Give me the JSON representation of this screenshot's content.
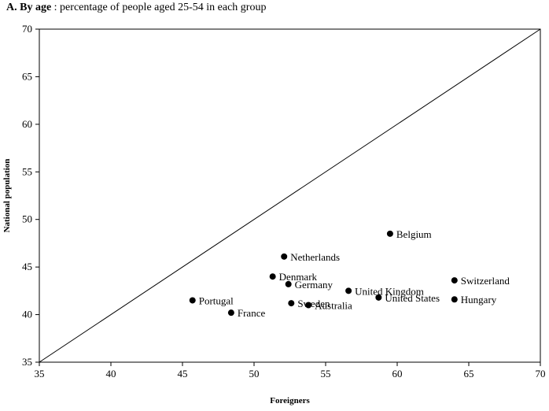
{
  "chart_data": {
    "type": "scatter",
    "title_bold": "A. By age",
    "title_rest": " : percentage of people aged 25-54 in each group",
    "xlabel": "Foreigners",
    "ylabel": "National population",
    "xlim": [
      35,
      70
    ],
    "ylim": [
      35,
      70
    ],
    "xticks": [
      35,
      40,
      45,
      50,
      55,
      60,
      65,
      70
    ],
    "yticks": [
      35,
      40,
      45,
      50,
      55,
      60,
      65,
      70
    ],
    "grid": false,
    "reference_line": "y = x",
    "points": [
      {
        "label": "Belgium",
        "x": 59.5,
        "y": 48.5
      },
      {
        "label": "Netherlands",
        "x": 52.1,
        "y": 46.1
      },
      {
        "label": "Denmark",
        "x": 51.3,
        "y": 44.0
      },
      {
        "label": "Germany",
        "x": 52.4,
        "y": 43.2
      },
      {
        "label": "United Kingdom",
        "x": 56.6,
        "y": 42.5
      },
      {
        "label": "United States",
        "x": 58.7,
        "y": 41.8
      },
      {
        "label": "Switzerland",
        "x": 64.0,
        "y": 43.6
      },
      {
        "label": "Hungary",
        "x": 64.0,
        "y": 41.6
      },
      {
        "label": "Portugal",
        "x": 45.7,
        "y": 41.5
      },
      {
        "label": "France",
        "x": 48.4,
        "y": 40.2
      },
      {
        "label": "Sweden",
        "x": 52.6,
        "y": 41.2
      },
      {
        "label": "Australia",
        "x": 53.8,
        "y": 41.0
      }
    ]
  }
}
